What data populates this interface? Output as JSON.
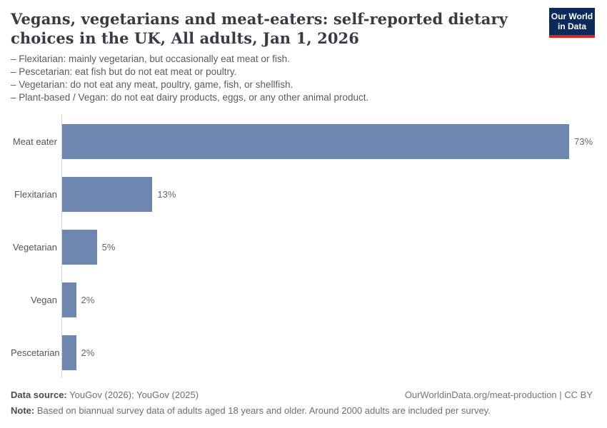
{
  "header": {
    "title": "Vegans, vegetarians and meat-eaters: self-reported dietary choices in the UK, All adults, Jan 1, 2026",
    "logo": {
      "line1": "Our World",
      "line2": "in Data",
      "bg_color": "#0b2a5b",
      "accent_color": "#d2271c"
    }
  },
  "subtitle": {
    "lines": [
      "– Flexitarian: mainly vegetarian, but occasionally eat meat or fish.",
      "– Pescetarian: eat fish but do not eat meat or poultry.",
      "– Vegetarian: do not eat any meat, poultry, game, fish, or shellfish.",
      "– Plant-based / Vegan: do not eat dairy products, eggs, or any other animal product."
    ]
  },
  "chart_data": {
    "type": "bar",
    "orientation": "horizontal",
    "title": "Vegans, vegetarians and meat-eaters: self-reported dietary choices in the UK, All adults, Jan 1, 2026",
    "categories": [
      "Meat eater",
      "Flexitarian",
      "Vegetarian",
      "Vegan",
      "Pescetarian"
    ],
    "values": [
      73,
      13,
      5,
      2,
      2
    ],
    "value_labels": [
      "73%",
      "13%",
      "5%",
      "2%",
      "2%"
    ],
    "unit": "%",
    "xlim": [
      0,
      73
    ],
    "bar_color": "#6d87b1",
    "grid": false,
    "legend": false
  },
  "footer": {
    "datasource_label": "Data source:",
    "datasource_value": " YouGov (2026); YouGov (2025)",
    "link": "OurWorldinData.org/meat-production | CC BY",
    "note_label": "Note:",
    "note_value": " Based on biannual survey data of adults aged 18 years and older. Around 2000 adults are included per survey."
  }
}
